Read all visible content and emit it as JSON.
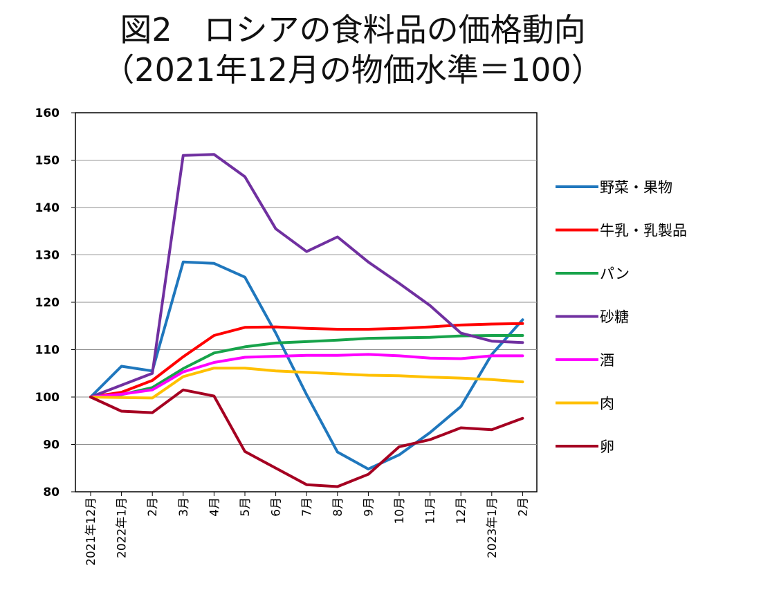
{
  "title": {
    "line1": "図2　ロシアの食料品の価格動向",
    "line2": "（2021年12月の物価水準＝100）"
  },
  "chart_data": {
    "type": "line",
    "title": "図2　ロシアの食料品の価格動向（2021年12月の物価水準＝100）",
    "xlabel": "",
    "ylabel": "",
    "ylim": [
      80,
      160
    ],
    "yticks": [
      80,
      90,
      100,
      110,
      120,
      130,
      140,
      150,
      160
    ],
    "grid": "horizontal",
    "legend_position": "right",
    "categories": [
      "2021年12月",
      "2022年1月",
      "2月",
      "3月",
      "4月",
      "5月",
      "6月",
      "7月",
      "8月",
      "9月",
      "10月",
      "11月",
      "12月",
      "2023年1月",
      "2月"
    ],
    "series": [
      {
        "name": "野菜・果物",
        "color": "#1f77bd",
        "values": [
          100,
          106.5,
          105.5,
          128.5,
          128.2,
          125.3,
          113.5,
          100.5,
          88.4,
          84.8,
          87.8,
          92.5,
          98.0,
          109.0,
          116.3
        ]
      },
      {
        "name": "牛乳・乳製品",
        "color": "#ff0000",
        "values": [
          100,
          101.0,
          103.5,
          108.5,
          113.0,
          114.7,
          114.8,
          114.5,
          114.3,
          114.3,
          114.5,
          114.8,
          115.2,
          115.4,
          115.5
        ]
      },
      {
        "name": "パン",
        "color": "#17a34a",
        "values": [
          100,
          100.5,
          102.0,
          106.0,
          109.3,
          110.6,
          111.4,
          111.7,
          112.0,
          112.4,
          112.5,
          112.6,
          112.9,
          113.0,
          113.0
        ]
      },
      {
        "name": "砂糖",
        "color": "#7030a0",
        "values": [
          100,
          102.5,
          105.0,
          151.0,
          151.2,
          146.5,
          135.5,
          130.7,
          133.8,
          128.5,
          124.0,
          119.3,
          113.5,
          111.8,
          111.5
        ]
      },
      {
        "name": "酒",
        "color": "#ff00ff",
        "values": [
          100,
          100.6,
          101.5,
          105.3,
          107.3,
          108.4,
          108.6,
          108.8,
          108.8,
          109.0,
          108.7,
          108.2,
          108.1,
          108.7,
          108.7
        ]
      },
      {
        "name": "肉",
        "color": "#ffc000",
        "values": [
          100,
          99.9,
          99.8,
          104.3,
          106.1,
          106.1,
          105.5,
          105.2,
          104.9,
          104.6,
          104.5,
          104.2,
          104.0,
          103.7,
          103.2
        ]
      },
      {
        "name": "卵",
        "color": "#a50021",
        "values": [
          100,
          97.0,
          96.7,
          101.5,
          100.2,
          88.5,
          85.0,
          81.5,
          81.1,
          83.7,
          89.5,
          91.0,
          93.5,
          93.1,
          95.5
        ]
      }
    ]
  }
}
